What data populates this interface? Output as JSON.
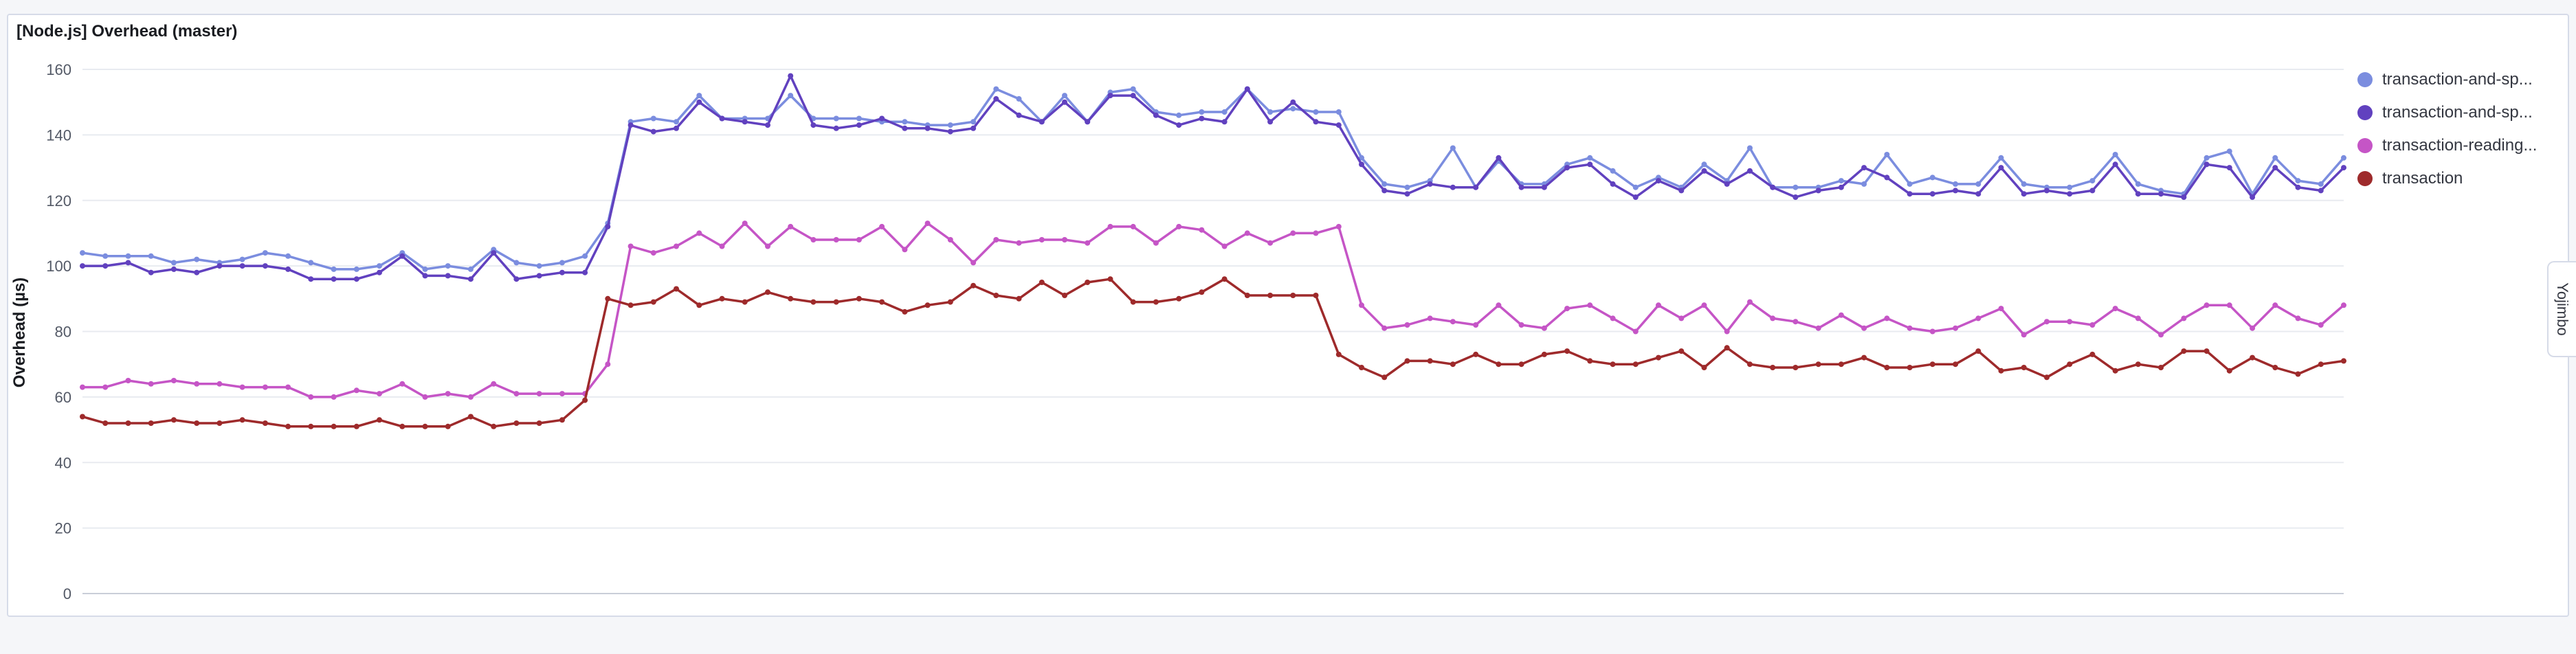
{
  "panel": {
    "title": "[Node.js] Overhead (master)"
  },
  "side_tab": {
    "label": "Yojimbo"
  },
  "chart_data": {
    "type": "line",
    "title": "[Node.js] Overhead (master)",
    "xlabel": "",
    "ylabel": "Overhead (µs)",
    "ylim": [
      0,
      160
    ],
    "yticks": [
      0,
      20,
      40,
      60,
      80,
      100,
      120,
      140,
      160
    ],
    "grid": true,
    "legend": "right",
    "series": [
      {
        "name": "transaction-and-sp...",
        "color": "#7b8ddf",
        "values": [
          104,
          103,
          103,
          103,
          101,
          102,
          101,
          102,
          104,
          103,
          101,
          99,
          99,
          100,
          104,
          99,
          100,
          99,
          105,
          101,
          100,
          101,
          103,
          113,
          144,
          145,
          144,
          152,
          145,
          145,
          145,
          152,
          145,
          145,
          145,
          144,
          144,
          143,
          143,
          144,
          154,
          151,
          144,
          152,
          144,
          153,
          154,
          147,
          146,
          147,
          147,
          154,
          147,
          148,
          147,
          147,
          133,
          125,
          124,
          126,
          136,
          124,
          132,
          125,
          125,
          131,
          133,
          129,
          124,
          127,
          124,
          131,
          126,
          136,
          124,
          124,
          124,
          126,
          125,
          134,
          125,
          127,
          125,
          125,
          133,
          125,
          124,
          124,
          126,
          134,
          125,
          123,
          122,
          133,
          135,
          122,
          133,
          126,
          125,
          133
        ]
      },
      {
        "name": "transaction-and-sp...",
        "color": "#6141bf",
        "values": [
          100,
          100,
          101,
          98,
          99,
          98,
          100,
          100,
          100,
          99,
          96,
          96,
          96,
          98,
          103,
          97,
          97,
          96,
          104,
          96,
          97,
          98,
          98,
          112,
          143,
          141,
          142,
          150,
          145,
          144,
          143,
          158,
          143,
          142,
          143,
          145,
          142,
          142,
          141,
          142,
          151,
          146,
          144,
          150,
          144,
          152,
          152,
          146,
          143,
          145,
          144,
          154,
          144,
          150,
          144,
          143,
          131,
          123,
          122,
          125,
          124,
          124,
          133,
          124,
          124,
          130,
          131,
          125,
          121,
          126,
          123,
          129,
          125,
          129,
          124,
          121,
          123,
          124,
          130,
          127,
          122,
          122,
          123,
          122,
          130,
          122,
          123,
          122,
          123,
          131,
          122,
          122,
          121,
          131,
          130,
          121,
          130,
          124,
          123,
          130
        ]
      },
      {
        "name": "transaction-reading...",
        "color": "#c555c6",
        "values": [
          63,
          63,
          65,
          64,
          65,
          64,
          64,
          63,
          63,
          63,
          60,
          60,
          62,
          61,
          64,
          60,
          61,
          60,
          64,
          61,
          61,
          61,
          61,
          70,
          106,
          104,
          106,
          110,
          106,
          113,
          106,
          112,
          108,
          108,
          108,
          112,
          105,
          113,
          108,
          101,
          108,
          107,
          108,
          108,
          107,
          112,
          112,
          107,
          112,
          111,
          106,
          110,
          107,
          110,
          110,
          112,
          88,
          81,
          82,
          84,
          83,
          82,
          88,
          82,
          81,
          87,
          88,
          84,
          80,
          88,
          84,
          88,
          80,
          89,
          84,
          83,
          81,
          85,
          81,
          84,
          81,
          80,
          81,
          84,
          87,
          79,
          83,
          83,
          82,
          87,
          84,
          79,
          84,
          88,
          88,
          81,
          88,
          84,
          82,
          88
        ]
      },
      {
        "name": "transaction",
        "color": "#9e2a2b",
        "values": [
          54,
          52,
          52,
          52,
          53,
          52,
          52,
          53,
          52,
          51,
          51,
          51,
          51,
          53,
          51,
          51,
          51,
          54,
          51,
          52,
          52,
          53,
          59,
          90,
          88,
          89,
          93,
          88,
          90,
          89,
          92,
          90,
          89,
          89,
          90,
          89,
          86,
          88,
          89,
          94,
          91,
          90,
          95,
          91,
          95,
          96,
          89,
          89,
          90,
          92,
          96,
          91,
          91,
          91,
          91,
          73,
          69,
          66,
          71,
          71,
          70,
          73,
          70,
          70,
          73,
          74,
          71,
          70,
          70,
          72,
          74,
          69,
          75,
          70,
          69,
          69,
          70,
          70,
          72,
          69,
          69,
          70,
          70,
          74,
          68,
          69,
          66,
          70,
          73,
          68,
          70,
          69,
          74,
          74,
          68,
          72,
          69,
          67,
          70,
          71
        ]
      }
    ]
  }
}
